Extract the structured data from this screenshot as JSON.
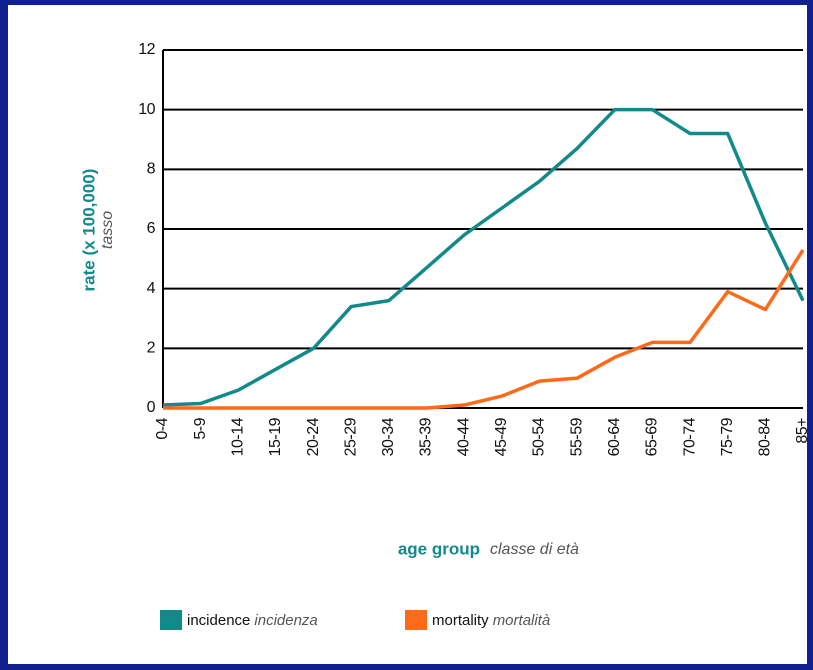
{
  "chart_data": {
    "type": "line",
    "y_label": "rate (x 100,000)",
    "y_label_sub": "tasso",
    "x_label": "age group",
    "x_label_sub": "classe di età",
    "categories": [
      "0-4",
      "5-9",
      "10-14",
      "15-19",
      "20-24",
      "25-29",
      "30-34",
      "35-39",
      "40-44",
      "45-49",
      "50-54",
      "55-59",
      "60-64",
      "65-69",
      "70-74",
      "75-79",
      "80-84",
      "85+"
    ],
    "series": [
      {
        "name": "incidence",
        "name_sub": "incidenza",
        "color": "#138a8a",
        "values": [
          0.1,
          0.15,
          0.6,
          1.3,
          2.0,
          3.4,
          3.6,
          4.7,
          5.8,
          6.7,
          7.6,
          8.7,
          10.0,
          10.0,
          9.2,
          9.2,
          6.2,
          3.6
        ]
      },
      {
        "name": "mortality",
        "name_sub": "mortalità",
        "color": "#ff6a1a",
        "values": [
          0,
          0,
          0,
          0,
          0,
          0,
          0,
          0,
          0.1,
          0.4,
          0.9,
          1.0,
          1.7,
          2.2,
          2.2,
          3.9,
          3.3,
          5.3
        ]
      }
    ],
    "ylim": [
      0,
      12
    ],
    "yticks": [
      0,
      2,
      4,
      6,
      8,
      10,
      12
    ],
    "grid": true
  }
}
